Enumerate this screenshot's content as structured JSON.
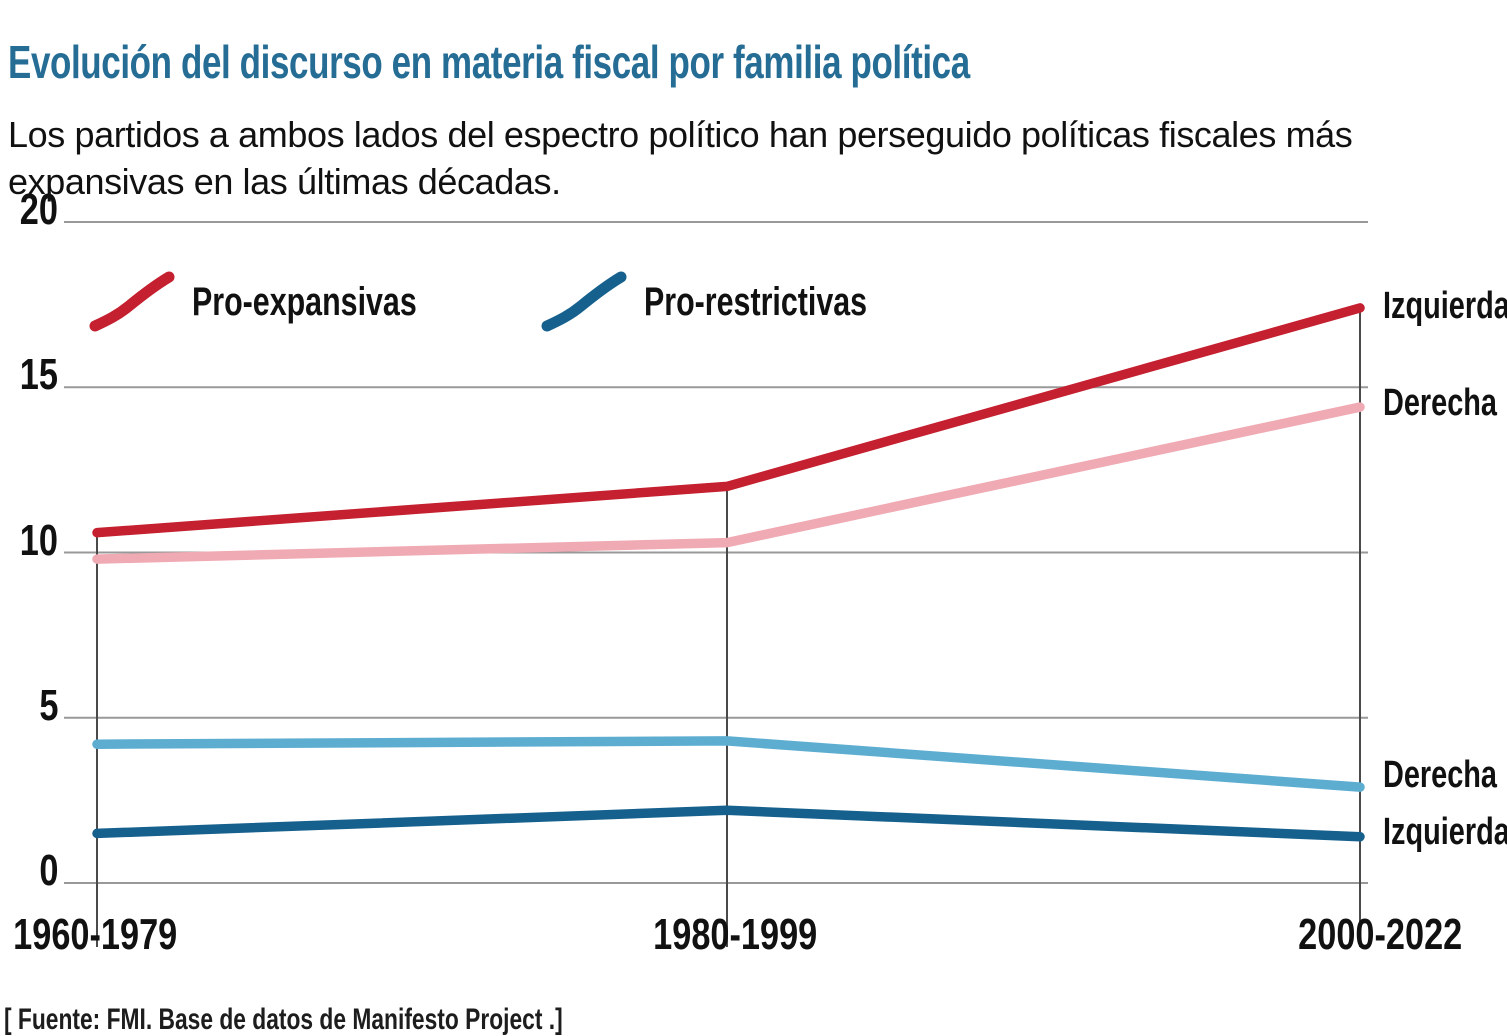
{
  "header": {
    "title": "Evolución del discurso en materia fiscal por familia política",
    "subtitle": "Los partidos a ambos lados del espectro político han perseguido políticas fiscales más expansivas en las últimas décadas."
  },
  "legend": {
    "items": [
      {
        "label": "Pro-expansivas",
        "icon": "red-line-swoosh-icon",
        "color": "#c4202f"
      },
      {
        "label": "Pro-restrictivas",
        "icon": "blue-line-swoosh-icon",
        "color": "#15608d"
      }
    ]
  },
  "chart_data": {
    "type": "line",
    "title": "Evolución del discurso en materia fiscal por familia política",
    "categories": [
      "1960-1979",
      "1980-1999",
      "2000-2022"
    ],
    "series": [
      {
        "name": "Izquierda pro-expansivas",
        "end_label": "Izquierda",
        "policy": "Pro-expansivas",
        "color": "#c4202f",
        "values": [
          10.6,
          12.0,
          17.4
        ]
      },
      {
        "name": "Derecha pro-expansivas",
        "end_label": "Derecha",
        "policy": "Pro-expansivas",
        "color": "#f0aab3",
        "values": [
          9.8,
          10.3,
          14.4
        ]
      },
      {
        "name": "Derecha pro-restrictivas",
        "end_label": "Derecha",
        "policy": "Pro-restrictivas",
        "color": "#5dadd1",
        "values": [
          4.2,
          4.3,
          2.9
        ]
      },
      {
        "name": "Izquierda pro-restrictivas",
        "end_label": "Izquierda",
        "policy": "Pro-restrictivas",
        "color": "#15608d",
        "values": [
          1.5,
          2.2,
          1.4
        ]
      }
    ],
    "yticks": [
      "20",
      "15",
      "10",
      "5",
      "0"
    ],
    "ytick_values": [
      20,
      15,
      10,
      5,
      0
    ],
    "ylim": [
      0,
      20
    ],
    "xlabel": "",
    "ylabel": "",
    "grid": "horizontal",
    "droplines": "from-top-series-to-axis",
    "legend_position": "top-left-inside"
  },
  "source": "[ Fuente: FMI. Base de datos de Manifesto Project .]",
  "colors": {
    "title": "#256d95",
    "text": "#111111",
    "grid": "#999999",
    "dropline": "#4a4a4a",
    "background": "#ffffff"
  }
}
